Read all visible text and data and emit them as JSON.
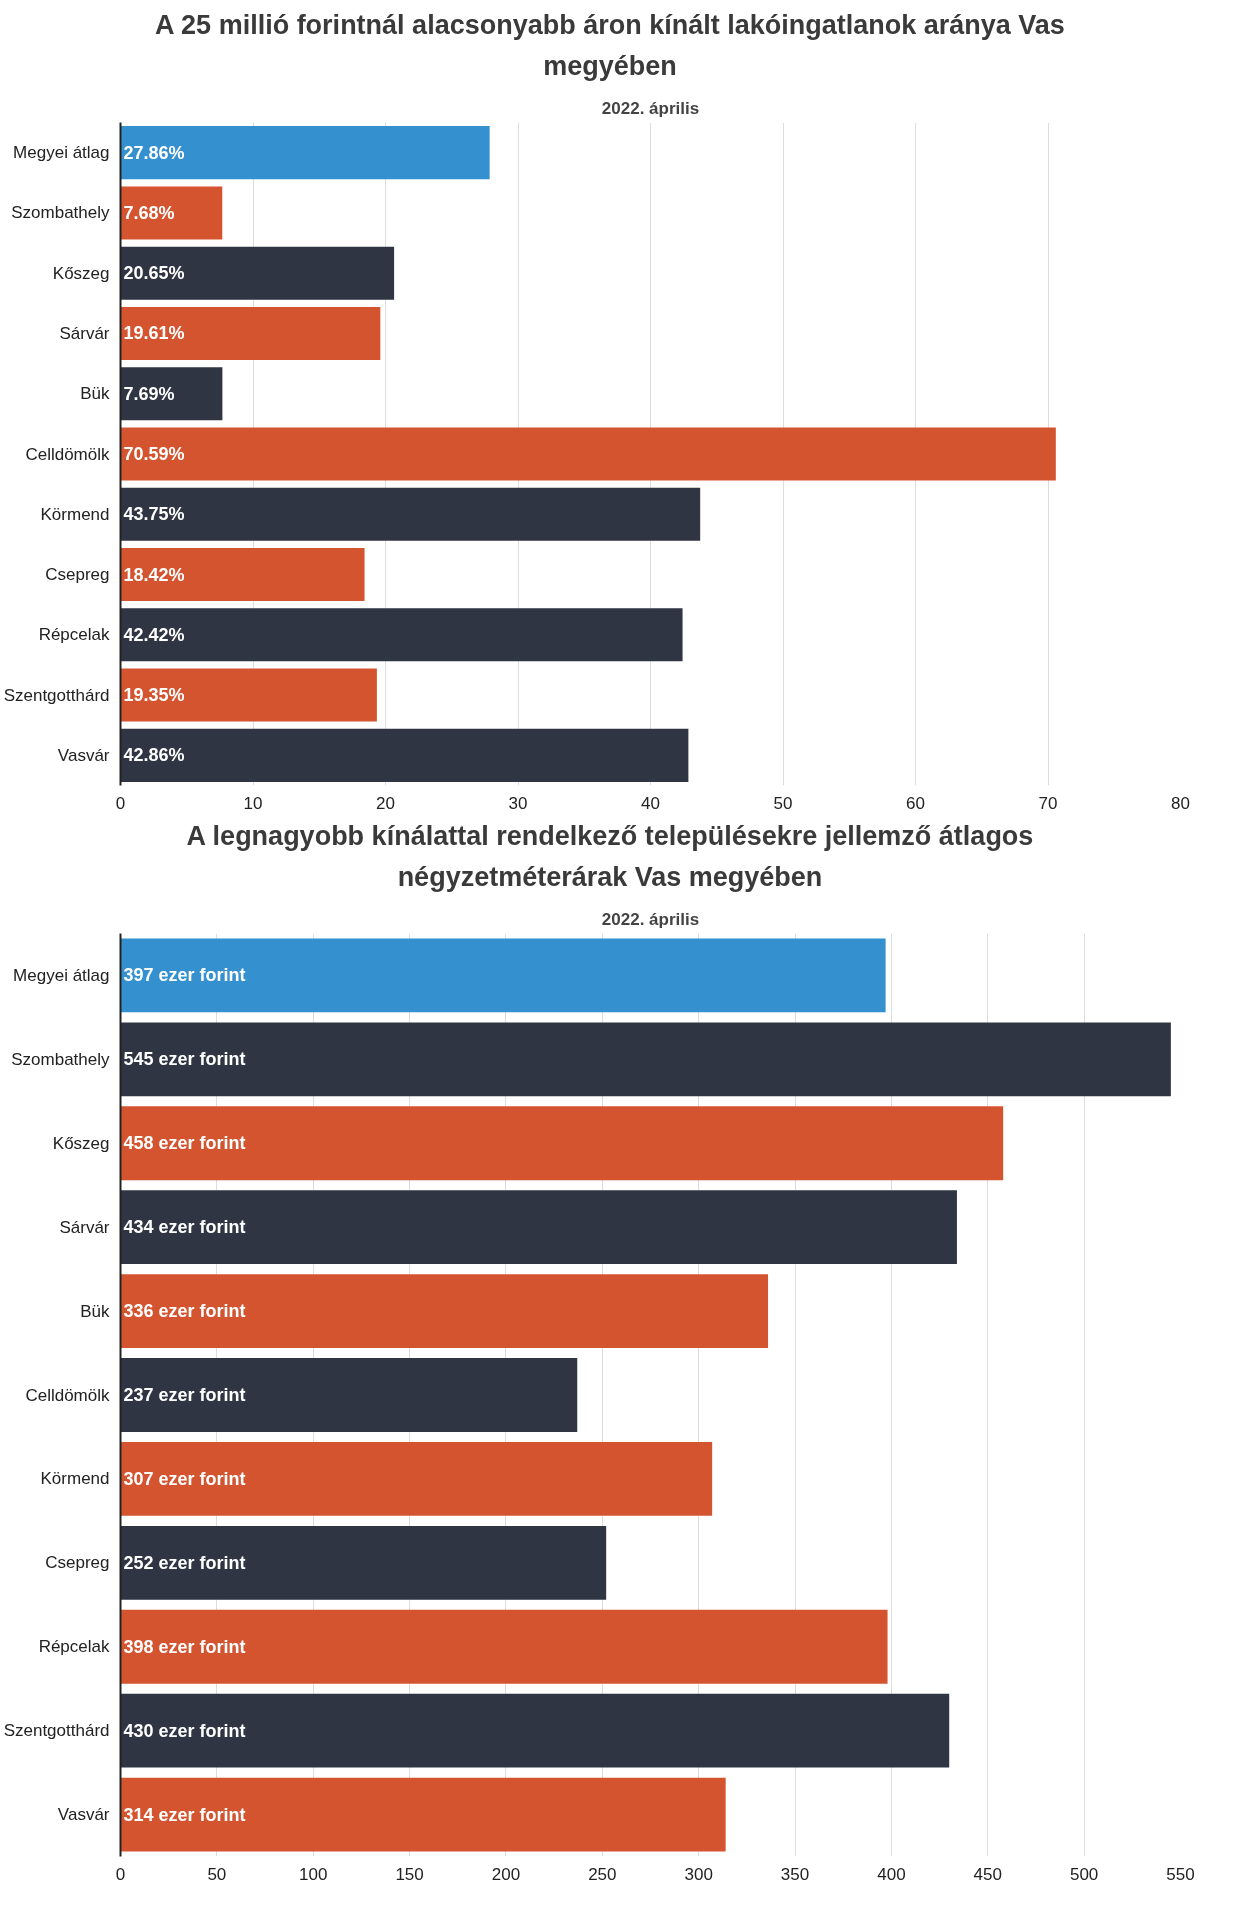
{
  "chart_data": [
    {
      "type": "bar",
      "orientation": "horizontal",
      "title": "A 25 millió forintnál alacsonyabb áron kínált lakóingatlanok aránya Vas megyében",
      "subtitle": "2022. április",
      "categories": [
        "Megyei átlag",
        "Szombathely",
        "Kőszeg",
        "Sárvár",
        "Bük",
        "Celldömölk",
        "Körmend",
        "Csepreg",
        "Répcelak",
        "Szentgotthárd",
        "Vasvár"
      ],
      "values": [
        27.86,
        7.68,
        20.65,
        19.61,
        7.69,
        70.59,
        43.75,
        18.42,
        42.42,
        19.35,
        42.86
      ],
      "value_labels": [
        "27.86%",
        "7.68%",
        "20.65%",
        "19.61%",
        "7.69%",
        "70.59%",
        "43.75%",
        "18.42%",
        "42.42%",
        "19.35%",
        "42.86%"
      ],
      "colors": [
        "#3590d0",
        "#d3542f",
        "#2f3542",
        "#d3542f",
        "#2f3542",
        "#d3542f",
        "#2f3542",
        "#d3542f",
        "#2f3542",
        "#d3542f",
        "#2f3542"
      ],
      "xlim": [
        0,
        80
      ],
      "xticks": [
        0,
        10,
        20,
        30,
        40,
        50,
        60,
        70,
        80
      ],
      "grid": "x"
    },
    {
      "type": "bar",
      "orientation": "horizontal",
      "title": "A legnagyobb kínálattal rendelkező településekre jellemző átlagos négyzetméterárak Vas megyében",
      "subtitle": "2022. április",
      "categories": [
        "Megyei átlag",
        "Szombathely",
        "Kőszeg",
        "Sárvár",
        "Bük",
        "Celldömölk",
        "Körmend",
        "Csepreg",
        "Répcelak",
        "Szentgotthárd",
        "Vasvár"
      ],
      "values": [
        397,
        545,
        458,
        434,
        336,
        237,
        307,
        252,
        398,
        430,
        314
      ],
      "value_labels": [
        "397 ezer forint",
        "545 ezer forint",
        "458 ezer forint",
        "434 ezer forint",
        "336 ezer forint",
        "237 ezer forint",
        "307 ezer forint",
        "252 ezer forint",
        "398 ezer forint",
        "430 ezer forint",
        "314 ezer forint"
      ],
      "colors": [
        "#3590d0",
        "#2f3542",
        "#d3542f",
        "#2f3542",
        "#d3542f",
        "#2f3542",
        "#d3542f",
        "#2f3542",
        "#d3542f",
        "#2f3542",
        "#d3542f"
      ],
      "xlim": [
        0,
        550
      ],
      "xticks": [
        0,
        50,
        100,
        150,
        200,
        250,
        300,
        350,
        400,
        450,
        500,
        550
      ],
      "grid": "x"
    }
  ]
}
